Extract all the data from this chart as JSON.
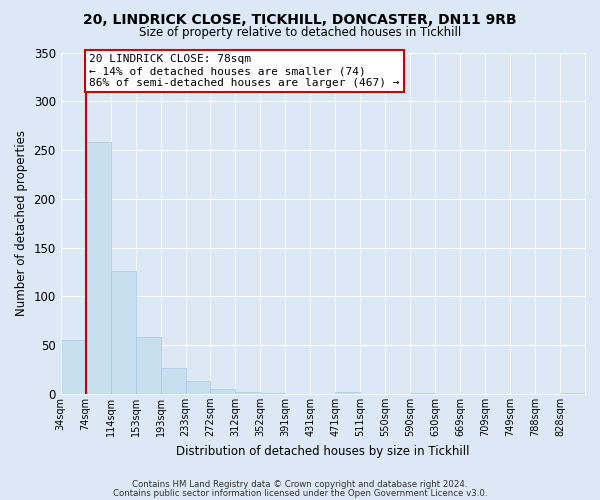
{
  "title": "20, LINDRICK CLOSE, TICKHILL, DONCASTER, DN11 9RB",
  "subtitle": "Size of property relative to detached houses in Tickhill",
  "xlabel": "Distribution of detached houses by size in Tickhill",
  "ylabel": "Number of detached properties",
  "bin_labels": [
    "34sqm",
    "74sqm",
    "114sqm",
    "153sqm",
    "193sqm",
    "233sqm",
    "272sqm",
    "312sqm",
    "352sqm",
    "391sqm",
    "431sqm",
    "471sqm",
    "511sqm",
    "550sqm",
    "590sqm",
    "630sqm",
    "669sqm",
    "709sqm",
    "749sqm",
    "788sqm",
    "828sqm"
  ],
  "bar_values": [
    55,
    258,
    126,
    58,
    27,
    13,
    5,
    2,
    1,
    0,
    0,
    2,
    0,
    0,
    1,
    0,
    0,
    0,
    0,
    0,
    1
  ],
  "bar_color": "#c8dff0",
  "bar_edge_color": "#a8c8e8",
  "property_line_label": "20 LINDRICK CLOSE: 78sqm",
  "annotation_line1": "← 14% of detached houses are smaller (74)",
  "annotation_line2": "86% of semi-detached houses are larger (467) →",
  "annotation_box_edge_color": "#cc0000",
  "vline_color": "#cc0000",
  "vline_x_bin": 1,
  "ylim": [
    0,
    350
  ],
  "yticks": [
    0,
    50,
    100,
    150,
    200,
    250,
    300,
    350
  ],
  "footer_line1": "Contains HM Land Registry data © Crown copyright and database right 2024.",
  "footer_line2": "Contains public sector information licensed under the Open Government Licence v3.0.",
  "bg_color": "#dce8f5",
  "plot_bg_color": "#dce8f5"
}
